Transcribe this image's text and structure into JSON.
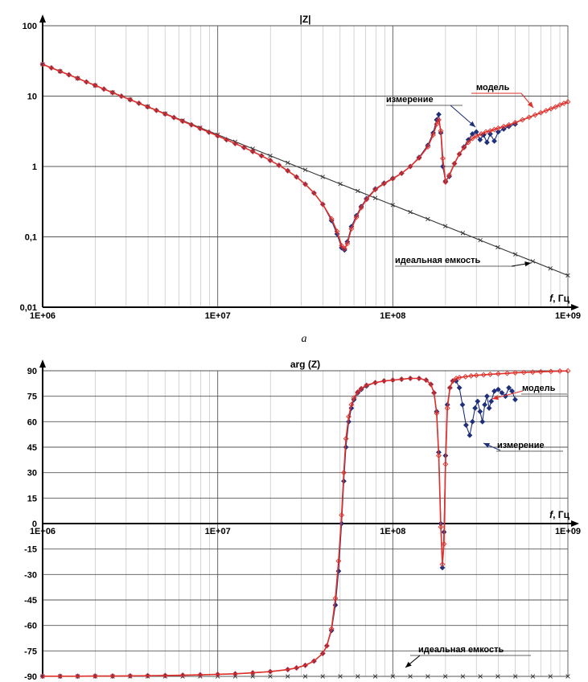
{
  "colors": {
    "measurement": "#1f2f7a",
    "model": "#e0302a",
    "ideal": "#333333"
  },
  "chart_data": [
    {
      "type": "line",
      "title": "|Z|",
      "xlabel": "f, Гц",
      "xscale": "log",
      "yscale": "log",
      "xlim": [
        1000000,
        1000000000
      ],
      "ylim": [
        0.01,
        100
      ],
      "xticks": [
        "1E+06",
        "1E+07",
        "1E+08",
        "1E+09"
      ],
      "yticks": [
        "0,01",
        "0,1",
        "1",
        "10",
        "100"
      ],
      "subcaption": "a",
      "annotations": [
        "измерение",
        "модель",
        "идеальная емкость"
      ],
      "series": [
        {
          "name": "измерение",
          "x": [
            1000000,
            1122018,
            1258925,
            1412538,
            1584893,
            1778279,
            1995262,
            2238721,
            2511886,
            2818383,
            3162278,
            3548134,
            3981072,
            4466836,
            5011872,
            5623413,
            6309573,
            7079458,
            7943282,
            8912509,
            10000000,
            11220185,
            12589254,
            14125375,
            15848932,
            17782794,
            19952623,
            22387211,
            25118864,
            28183829,
            31622777,
            35481339,
            39810717,
            44668359,
            48000000,
            51000000,
            53000000,
            55000000,
            58000000,
            62000000,
            66000000,
            70794578,
            79432823,
            89125094,
            100000000,
            112201845,
            125892541,
            141253754,
            158489319,
            170000000,
            178000000,
            183000000,
            188000000,
            193000000,
            200000000,
            210000000,
            225000000,
            240000000,
            255000000,
            270000000,
            285000000,
            300000000,
            315000000,
            330000000,
            345000000,
            360000000,
            380000000,
            400000000,
            430000000,
            460000000,
            500000000
          ],
          "y": [
            28.3,
            25.2,
            22.5,
            20.1,
            17.9,
            15.9,
            14.2,
            12.6,
            11.2,
            9.98,
            8.9,
            7.92,
            7.04,
            6.27,
            5.57,
            4.96,
            4.4,
            3.91,
            3.47,
            3.07,
            2.72,
            2.4,
            2.12,
            1.86,
            1.63,
            1.42,
            1.22,
            1.04,
            0.87,
            0.71,
            0.56,
            0.42,
            0.29,
            0.17,
            0.11,
            0.07,
            0.065,
            0.085,
            0.14,
            0.2,
            0.27,
            0.35,
            0.48,
            0.58,
            0.68,
            0.8,
            1.0,
            1.35,
            2.0,
            3.0,
            4.6,
            5.5,
            3.0,
            1.0,
            0.62,
            0.72,
            1.1,
            1.5,
            1.9,
            2.4,
            2.9,
            3.1,
            2.4,
            2.8,
            2.2,
            2.9,
            2.3,
            3.1,
            3.4,
            3.7,
            4.0
          ]
        },
        {
          "name": "модель",
          "x": [
            1000000,
            1122018,
            1258925,
            1412538,
            1584893,
            1778279,
            1995262,
            2238721,
            2511886,
            2818383,
            3162278,
            3548134,
            3981072,
            4466836,
            5011872,
            5623413,
            6309573,
            7079458,
            7943282,
            8912509,
            10000000,
            11220185,
            12589254,
            14125375,
            15848932,
            17782794,
            19952623,
            22387211,
            25118864,
            28183829,
            31622777,
            35481339,
            39810717,
            44668359,
            48000000,
            51000000,
            53000000,
            55000000,
            58000000,
            62000000,
            66000000,
            70794578,
            79432823,
            89125094,
            100000000,
            112201845,
            125892541,
            141253754,
            158489319,
            170000000,
            178000000,
            183000000,
            188000000,
            193000000,
            200000000,
            210000000,
            225000000,
            240000000,
            255000000,
            270000000,
            285000000,
            300000000,
            320000000,
            340000000,
            360000000,
            380000000,
            400000000,
            430000000,
            460000000,
            500000000,
            550000000,
            600000000,
            650000000,
            700000000,
            750000000,
            800000000,
            850000000,
            900000000,
            950000000,
            1000000000
          ],
          "y": [
            28.3,
            25.2,
            22.5,
            20.1,
            17.9,
            15.9,
            14.2,
            12.6,
            11.2,
            9.98,
            8.9,
            7.92,
            7.04,
            6.27,
            5.57,
            4.96,
            4.4,
            3.91,
            3.47,
            3.07,
            2.72,
            2.4,
            2.12,
            1.86,
            1.63,
            1.42,
            1.22,
            1.04,
            0.87,
            0.71,
            0.56,
            0.42,
            0.29,
            0.18,
            0.12,
            0.075,
            0.068,
            0.08,
            0.13,
            0.19,
            0.26,
            0.34,
            0.47,
            0.57,
            0.67,
            0.8,
            1.0,
            1.32,
            1.9,
            2.8,
            4.0,
            4.6,
            3.2,
            1.3,
            0.6,
            0.75,
            1.1,
            1.5,
            1.85,
            2.2,
            2.5,
            2.7,
            2.9,
            3.1,
            3.2,
            3.35,
            3.5,
            3.7,
            3.9,
            4.2,
            4.6,
            5.0,
            5.4,
            5.8,
            6.2,
            6.6,
            7.0,
            7.5,
            7.9,
            8.3
          ]
        },
        {
          "name": "идеальная емкость",
          "x": [
            1000000,
            1258925,
            1584893,
            1995262,
            2511886,
            3162278,
            3981072,
            5011872,
            6309573,
            7943282,
            10000000,
            12589254,
            15848932,
            19952623,
            25118864,
            31622777,
            39810717,
            50118723,
            63095734,
            79432823,
            100000000,
            125892541,
            158489319,
            199526231,
            251188643,
            316227766,
            398107171,
            501187234,
            630957344,
            794328235,
            1000000000
          ],
          "y": [
            28.3,
            22.5,
            17.9,
            14.2,
            11.3,
            8.95,
            7.11,
            5.65,
            4.49,
            3.56,
            2.83,
            2.25,
            1.79,
            1.42,
            1.13,
            0.895,
            0.711,
            0.565,
            0.449,
            0.356,
            0.283,
            0.225,
            0.179,
            0.142,
            0.113,
            0.0895,
            0.0711,
            0.0565,
            0.0449,
            0.0356,
            0.0283
          ]
        }
      ]
    },
    {
      "type": "line",
      "title": "arg (Z)",
      "xlabel": "f, Гц",
      "xscale": "log",
      "xlim": [
        1000000,
        1000000000
      ],
      "ylim": [
        -90,
        90
      ],
      "xticks": [
        "1E+06",
        "1E+07",
        "1E+08",
        "1E+09"
      ],
      "yticks": [
        "90",
        "75",
        "60",
        "45",
        "30",
        "15",
        "0",
        "-15",
        "-30",
        "-45",
        "-60",
        "-75",
        "-90"
      ],
      "annotations": [
        "модель",
        "измерение",
        "идеальная емкость"
      ],
      "series": [
        {
          "name": "измерение",
          "x": [
            1000000,
            1258925,
            1584893,
            1995262,
            2511886,
            3162278,
            3981072,
            5011872,
            6309573,
            7943282,
            10000000,
            12589254,
            15848932,
            19952623,
            25118864,
            28183829,
            31622777,
            35481339,
            39810717,
            42000000,
            44668359,
            47000000,
            49000000,
            51000000,
            52500000,
            54000000,
            56000000,
            58000000,
            60000000,
            63095734,
            66000000,
            70794578,
            79432823,
            89125094,
            100000000,
            112201845,
            125892541,
            141253754,
            155000000,
            165000000,
            172000000,
            178000000,
            183000000,
            188000000,
            192000000,
            196000000,
            200000000,
            205000000,
            212000000,
            220000000,
            230000000,
            240000000,
            250000000,
            262000000,
            275000000,
            285000000,
            295000000,
            305000000,
            315000000,
            325000000,
            335000000,
            345000000,
            355000000,
            365000000,
            380000000,
            400000000,
            420000000,
            440000000,
            460000000,
            480000000,
            500000000
          ],
          "y": [
            -89.9,
            -89.9,
            -89.9,
            -89.8,
            -89.8,
            -89.7,
            -89.6,
            -89.5,
            -89.3,
            -89.1,
            -88.8,
            -88.5,
            -87.9,
            -87.2,
            -86.0,
            -85.0,
            -83.5,
            -81.0,
            -76.5,
            -72.0,
            -63.0,
            -48.0,
            -28.0,
            0,
            25.0,
            45.0,
            60.0,
            68.0,
            73.0,
            77.0,
            79.0,
            81.0,
            83.0,
            84.0,
            84.5,
            85.0,
            85.5,
            85.5,
            84.5,
            82.0,
            77.0,
            66.0,
            42.0,
            0,
            -26.0,
            -5.0,
            40.0,
            70.0,
            80.0,
            84.0,
            84.0,
            80.0,
            70.0,
            58.0,
            52.0,
            60.0,
            68.0,
            72.0,
            66.0,
            60.0,
            70.0,
            75.0,
            68.0,
            72.0,
            78.0,
            79.0,
            77.0,
            75.0,
            80.0,
            78.0,
            73.0
          ]
        },
        {
          "name": "модель",
          "x": [
            1000000,
            1258925,
            1584893,
            1995262,
            2511886,
            3162278,
            3981072,
            5011872,
            6309573,
            7943282,
            10000000,
            12589254,
            15848932,
            19952623,
            25118864,
            28183829,
            31622777,
            35481339,
            39810717,
            42000000,
            44668359,
            47000000,
            49000000,
            51000000,
            52500000,
            54000000,
            56000000,
            58000000,
            60000000,
            63095734,
            66000000,
            70794578,
            79432823,
            89125094,
            100000000,
            112201845,
            125892541,
            141253754,
            155000000,
            165000000,
            172000000,
            178000000,
            183000000,
            188000000,
            192000000,
            196000000,
            200000000,
            205000000,
            212000000,
            220000000,
            230000000,
            240000000,
            260000000,
            280000000,
            300000000,
            330000000,
            360000000,
            400000000,
            450000000,
            500000000,
            560000000,
            630000000,
            700000000,
            800000000,
            900000000,
            1000000000
          ],
          "y": [
            -89.9,
            -89.9,
            -89.9,
            -89.8,
            -89.8,
            -89.7,
            -89.6,
            -89.5,
            -89.3,
            -89.1,
            -88.8,
            -88.5,
            -87.9,
            -87.2,
            -86.0,
            -85.0,
            -83.5,
            -81.0,
            -76.5,
            -72.0,
            -62.0,
            -44.0,
            -22.0,
            5.0,
            30.0,
            50.0,
            63.0,
            70.0,
            74.0,
            77.5,
            79.5,
            81.5,
            83.0,
            84.0,
            84.5,
            85.0,
            85.5,
            85.5,
            84.5,
            82.0,
            77.0,
            65.0,
            40.0,
            -2.0,
            -24.0,
            -12.0,
            35.0,
            68.0,
            80.0,
            84.0,
            85.5,
            86.0,
            86.5,
            87.0,
            87.3,
            87.6,
            87.9,
            88.2,
            88.5,
            88.8,
            89.0,
            89.2,
            89.4,
            89.6,
            89.8,
            89.9
          ]
        },
        {
          "name": "идеальная емкость",
          "x": [
            1000000,
            1258925,
            1584893,
            1995262,
            2511886,
            3162278,
            3981072,
            5011872,
            6309573,
            7943282,
            10000000,
            12589254,
            15848932,
            19952623,
            25118864,
            31622777,
            39810717,
            50118723,
            63095734,
            79432823,
            100000000,
            125892541,
            158489319,
            199526231,
            251188643,
            316227766,
            398107171,
            501187234,
            630957344,
            794328235,
            1000000000
          ],
          "y": [
            -90,
            -90,
            -90,
            -90,
            -90,
            -90,
            -90,
            -90,
            -90,
            -90,
            -90,
            -90,
            -90,
            -90,
            -90,
            -90,
            -90,
            -90,
            -90,
            -90,
            -90,
            -90,
            -90,
            -90,
            -90,
            -90,
            -90,
            -90,
            -90,
            -90,
            -90
          ]
        }
      ]
    }
  ]
}
